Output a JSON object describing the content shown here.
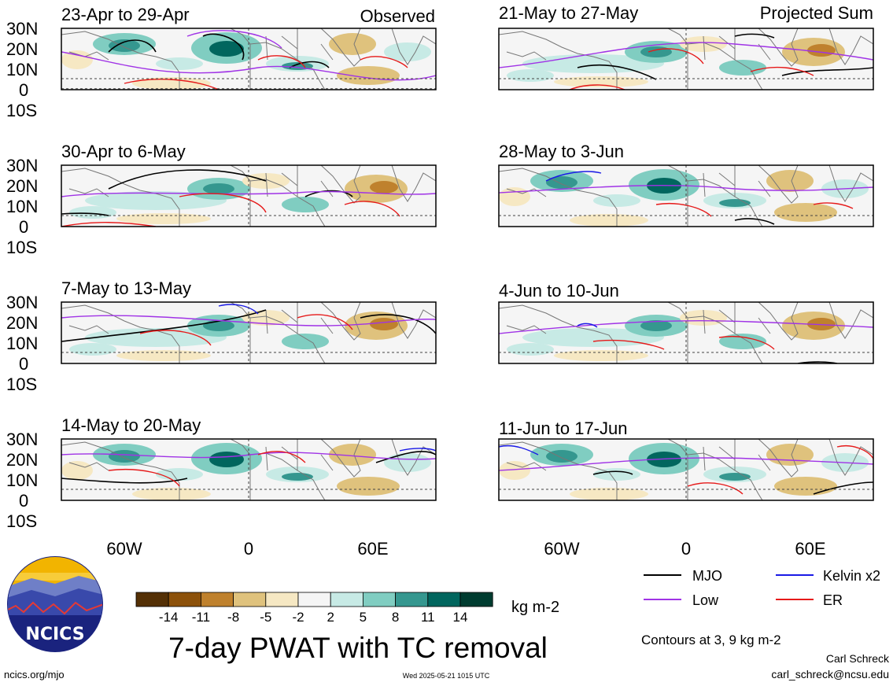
{
  "panel_titles": {
    "p0": "23-Apr to 29-Apr",
    "p1": "30-Apr to 6-May",
    "p2": "7-May to 13-May",
    "p3": "14-May to 20-May",
    "p4": "21-May to 27-May",
    "p5": "28-May to 3-Jun",
    "p6": "4-Jun to 10-Jun",
    "p7": "11-Jun to 17-Jun"
  },
  "column_headers": {
    "left": "Observed",
    "right": "Projected Sum"
  },
  "lat_labels": [
    "30N",
    "20N",
    "10N",
    "0",
    "10S"
  ],
  "lon_labels": [
    "60W",
    "0",
    "60E"
  ],
  "colorbar": {
    "ticks": [
      "-14",
      "-11",
      "-8",
      "-5",
      "-2",
      "2",
      "5",
      "8",
      "11",
      "14"
    ],
    "unit": "kg m-2",
    "colors": [
      "#543005",
      "#8c510a",
      "#bf812d",
      "#dfc27d",
      "#f6e8c3",
      "#f5f5f5",
      "#c7eae5",
      "#80cdc1",
      "#35978f",
      "#01665e",
      "#003c30"
    ]
  },
  "legend": {
    "mjo": "MJO",
    "kelvin": "Kelvin x2",
    "low": "Low",
    "er": "ER",
    "mjo_color": "#000000",
    "kelvin_color": "#1a1ae6",
    "low_color": "#a033e6",
    "er_color": "#e61a1a"
  },
  "contours_note": "Contours at 3, 9 kg m-2",
  "main_title": "7-day PWAT with TC removal",
  "footer": {
    "site": "ncics.org/mjo",
    "timestamp": "Wed 2025-05-21 1015 UTC",
    "author": "Carl Schreck",
    "email": "carl_schreck@ncsu.edu"
  },
  "logo_text": "NCICS"
}
